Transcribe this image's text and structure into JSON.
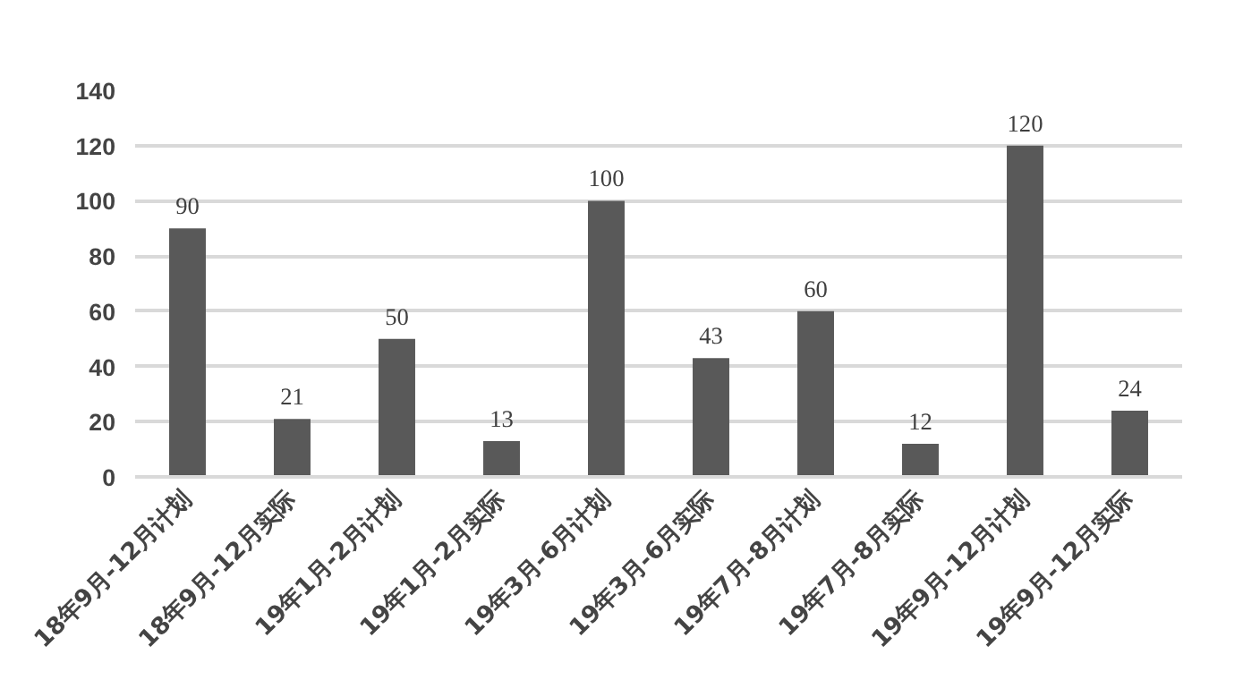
{
  "chart_data": {
    "type": "bar",
    "categories": [
      "18年9月-12月计划",
      "18年9月-12月实际",
      "19年1月-2月计划",
      "19年1月-2月实际",
      "19年3月-6月计划",
      "19年3月-6月实际",
      "19年7月-8月计划",
      "19年7月-8月实际",
      "19年9月-12月计划",
      "19年9月-12月实际"
    ],
    "values": [
      90,
      21,
      50,
      13,
      100,
      43,
      60,
      12,
      120,
      24
    ],
    "color": "#595959",
    "ylim": [
      0,
      140
    ],
    "yticks": [
      0,
      20,
      40,
      60,
      80,
      100,
      120,
      140
    ],
    "grid": "y",
    "data_labels": true
  }
}
